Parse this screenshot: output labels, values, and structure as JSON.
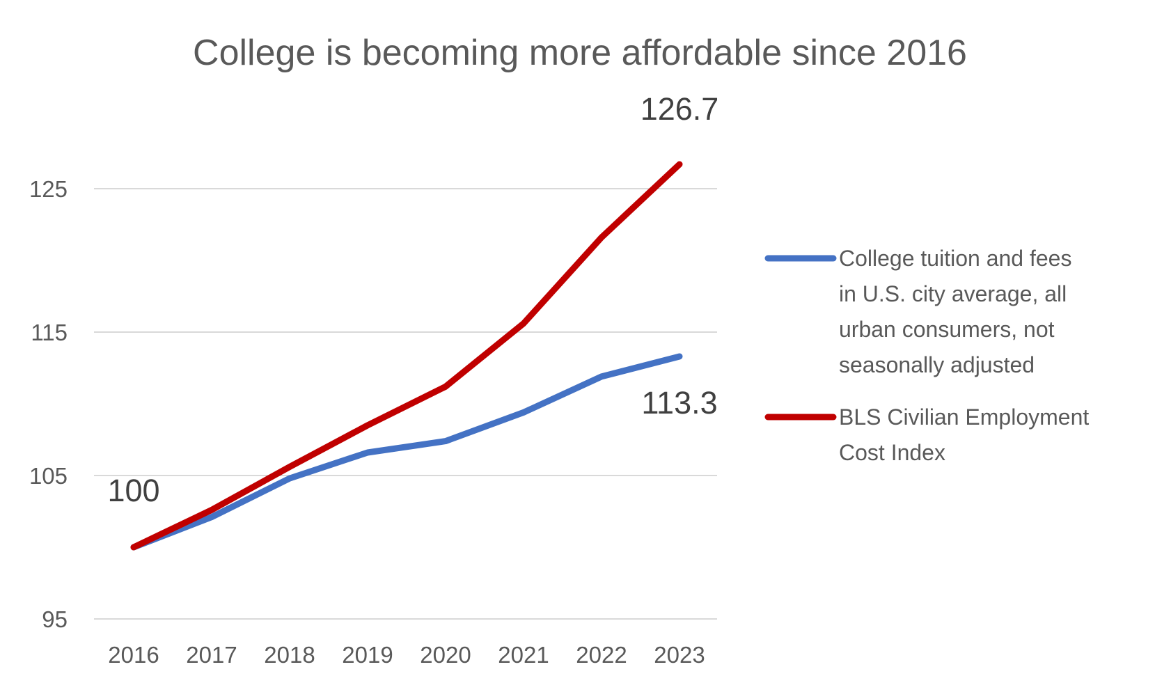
{
  "chart_data": {
    "type": "line",
    "title": "College is becoming more affordable since 2016",
    "xlabel": "",
    "ylabel": "",
    "x": [
      "2016",
      "2017",
      "2018",
      "2019",
      "2020",
      "2021",
      "2022",
      "2023"
    ],
    "y_ticks": [
      "95",
      "105",
      "115",
      "125"
    ],
    "ylim": [
      95,
      130
    ],
    "grid": true,
    "legend_position": "right",
    "series": [
      {
        "name": "College tuition and fees in U.S. city average, all urban consumers, not seasonally adjusted",
        "legend_lines": [
          "College tuition and fees",
          "in U.S. city average, all",
          "urban consumers, not",
          "seasonally adjusted"
        ],
        "color": "#4472c4",
        "values": [
          100,
          102.1,
          104.8,
          106.6,
          107.4,
          109.4,
          111.9,
          113.3
        ]
      },
      {
        "name": "BLS Civilian Employment Cost Index",
        "legend_lines": [
          "BLS Civilian Employment",
          "Cost Index"
        ],
        "color": "#c00000",
        "values": [
          100,
          102.6,
          105.6,
          108.5,
          111.2,
          115.6,
          121.6,
          126.7
        ]
      }
    ],
    "annotations": [
      {
        "text": "100",
        "series": 1,
        "index": 0,
        "position": "above"
      },
      {
        "text": "126.7",
        "series": 1,
        "index": 7,
        "position": "above"
      },
      {
        "text": "113.3",
        "series": 0,
        "index": 7,
        "position": "below"
      }
    ]
  }
}
